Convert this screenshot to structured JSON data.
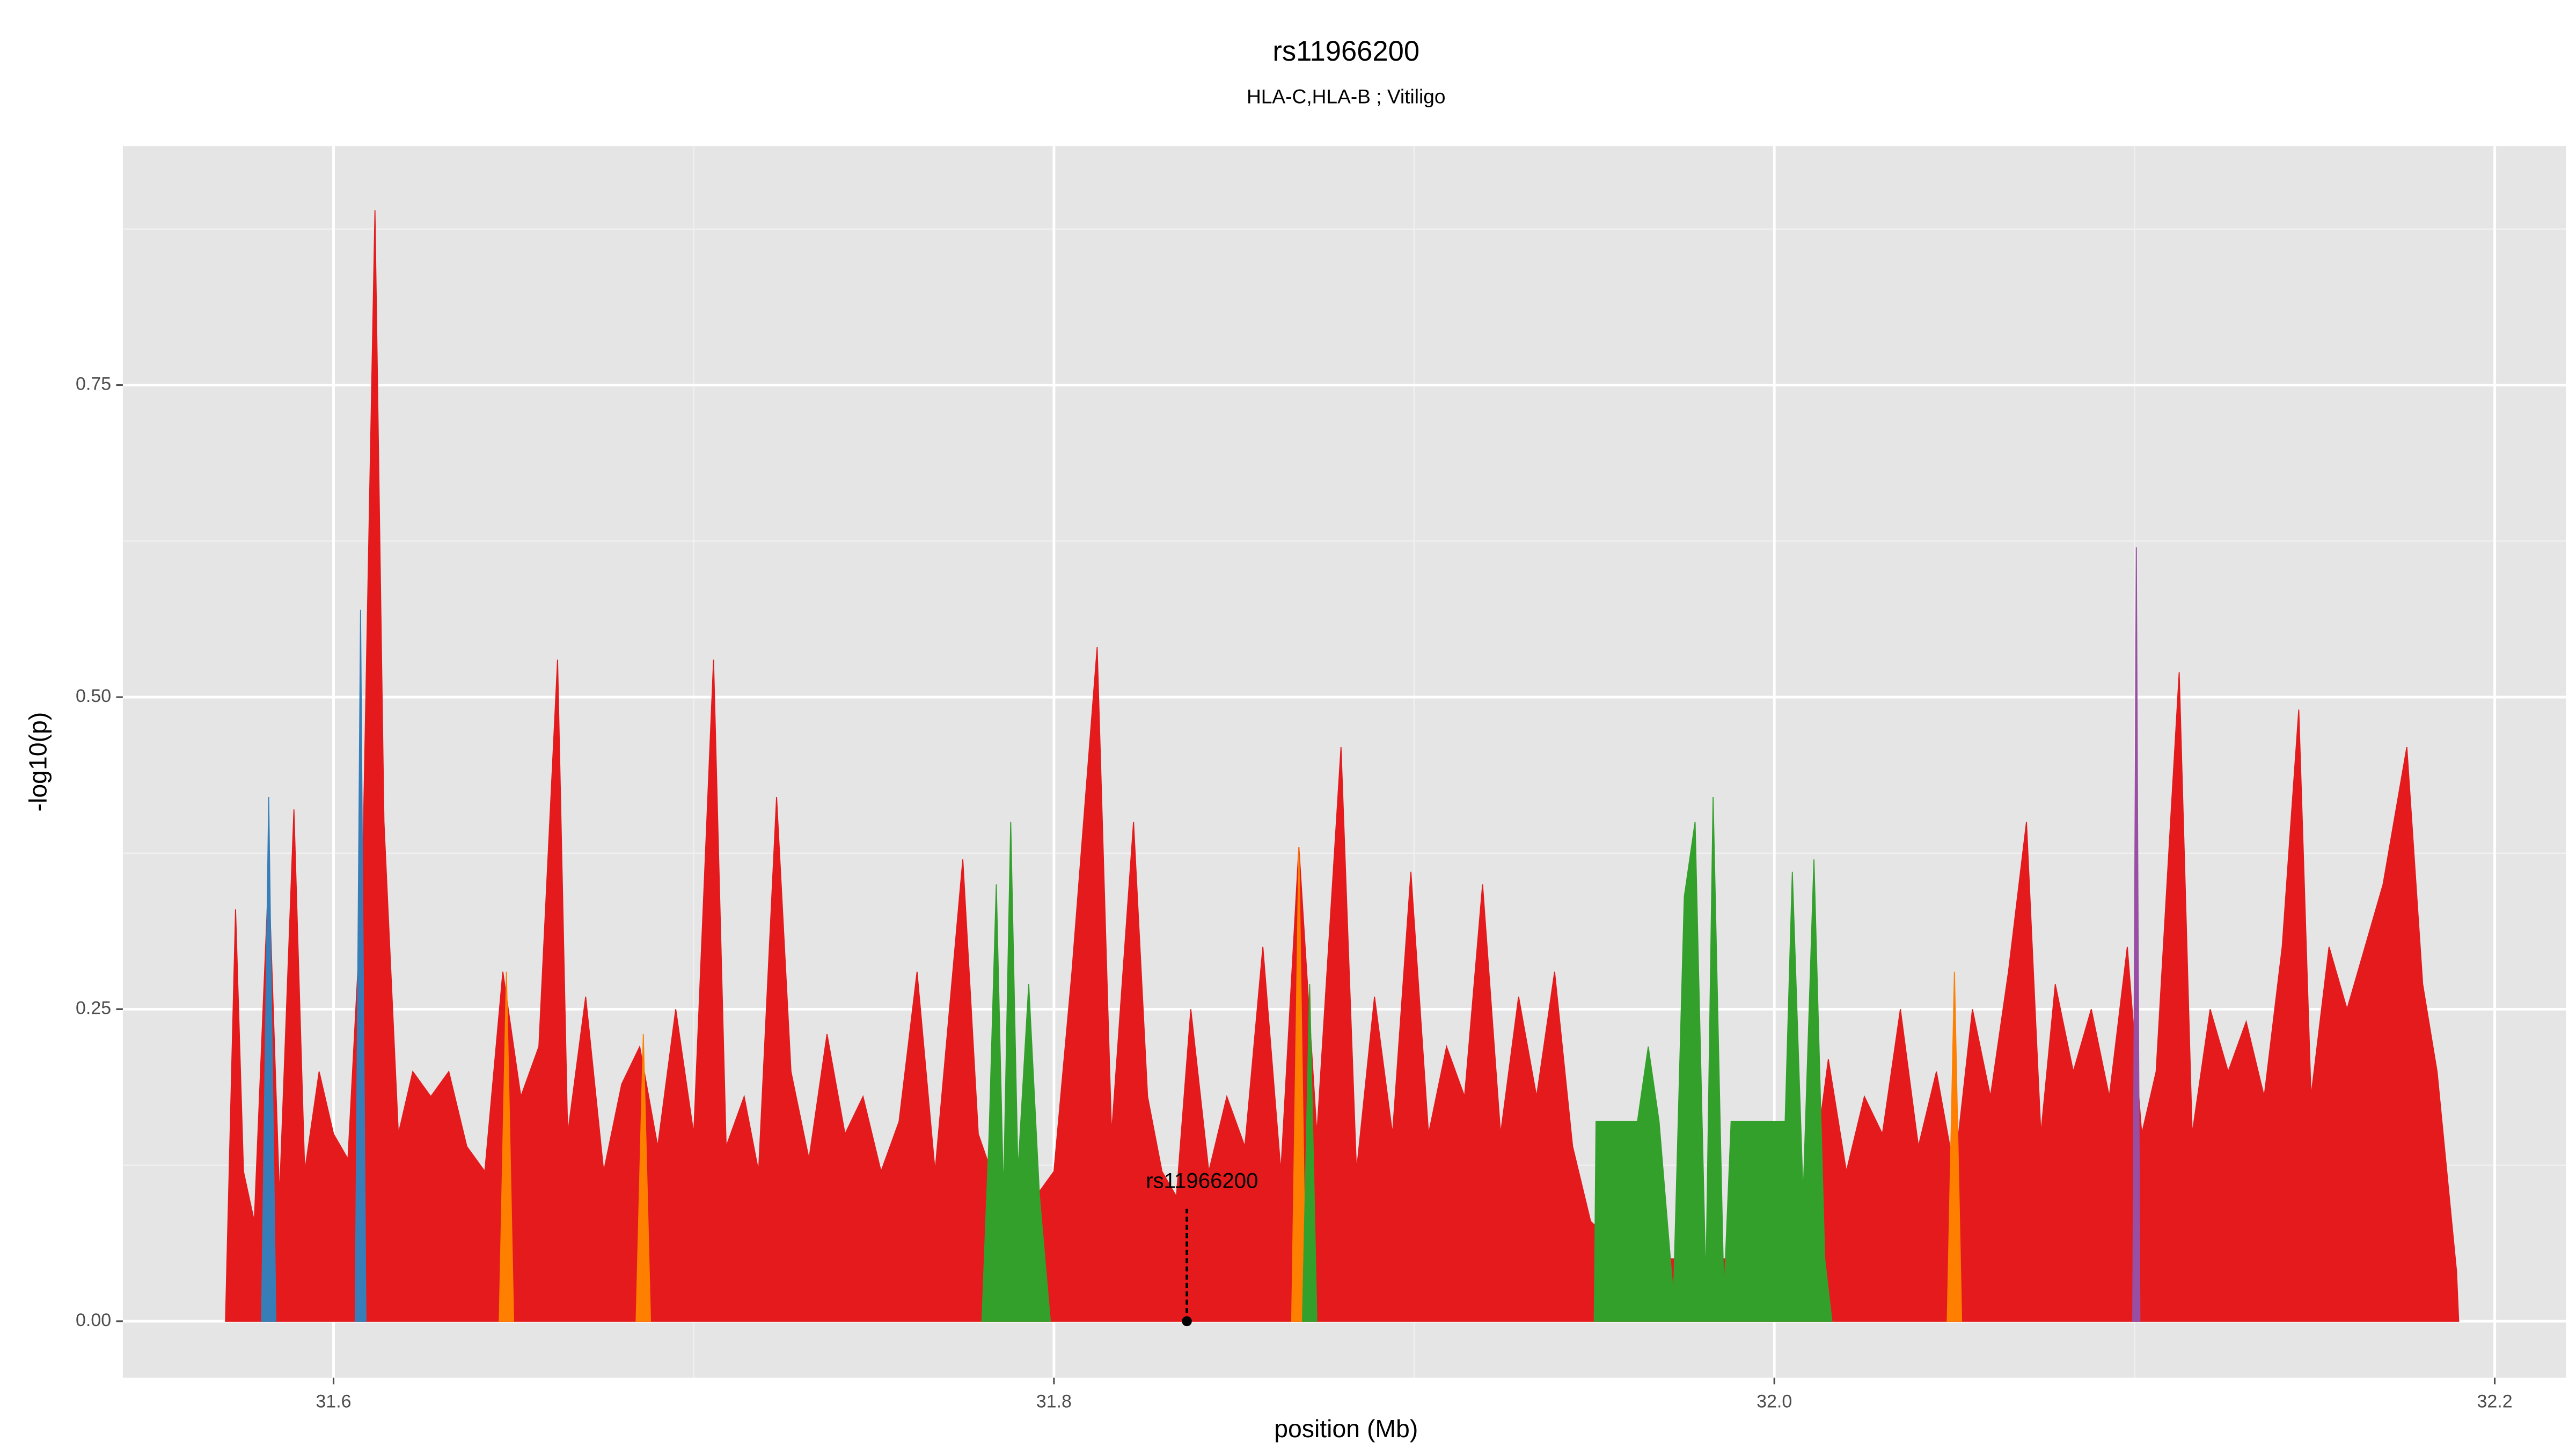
{
  "chart_data": {
    "type": "area",
    "title": "rs11966200",
    "subtitle": "HLA-C,HLA-B ; Vitiligo",
    "x_label": "position (Mb)",
    "y_label": "-log10(p)",
    "xlim": [
      31.5415,
      32.2198
    ],
    "ylim": [
      -0.0452,
      0.9415
    ],
    "xticks": [
      31.6,
      31.8,
      {
        "value": 32.0,
        "label": "32.0"
      },
      32.2
    ],
    "yticks": [
      {
        "value": 0,
        "label": "0.00"
      },
      0.25,
      {
        "value": 0.5,
        "label": "0.50"
      },
      0.75
    ],
    "xminor": [
      31.7,
      31.9,
      32.1
    ],
    "yminor": [
      0.125,
      0.375,
      0.625,
      0.875
    ],
    "grid": true,
    "series": [
      {
        "name": "red",
        "color": "#e41a1c",
        "x": [
          31.57,
          31.5728,
          31.575,
          31.578,
          31.582,
          31.585,
          31.589,
          31.592,
          31.596,
          31.6,
          31.604,
          31.608,
          31.6115,
          31.614,
          31.618,
          31.622,
          31.627,
          31.632,
          31.637,
          31.642,
          31.647,
          31.652,
          31.657,
          31.6622,
          31.665,
          31.67,
          31.675,
          31.68,
          31.685,
          31.69,
          31.695,
          31.7,
          31.7055,
          31.709,
          31.714,
          31.718,
          31.723,
          31.727,
          31.732,
          31.737,
          31.742,
          31.747,
          31.752,
          31.757,
          31.762,
          31.767,
          31.7747,
          31.779,
          31.785,
          31.79,
          31.795,
          31.8,
          31.805,
          31.812,
          31.816,
          31.8221,
          31.826,
          31.83,
          31.834,
          31.838,
          31.843,
          31.848,
          31.853,
          31.858,
          31.863,
          31.868,
          31.873,
          31.8797,
          31.884,
          31.889,
          31.894,
          31.8991,
          31.904,
          31.909,
          31.914,
          31.919,
          31.924,
          31.929,
          31.934,
          31.939,
          31.944,
          31.949,
          31.96,
          31.98,
          32.0,
          32.01,
          32.015,
          32.02,
          32.025,
          32.03,
          32.035,
          32.04,
          32.045,
          32.05,
          32.055,
          32.06,
          32.065,
          32.07,
          32.074,
          32.078,
          32.083,
          32.088,
          32.093,
          32.098,
          32.102,
          32.106,
          32.1124,
          32.116,
          32.121,
          32.126,
          32.131,
          32.136,
          32.141,
          32.1456,
          32.149,
          32.154,
          32.159,
          32.164,
          32.169,
          32.1756,
          32.18,
          32.184,
          32.1894,
          32.19
        ],
        "values": [
          0,
          0.33,
          0.12,
          0.08,
          0.36,
          0.1,
          0.41,
          0.12,
          0.2,
          0.15,
          0.13,
          0.35,
          0.89,
          0.4,
          0.15,
          0.2,
          0.18,
          0.2,
          0.14,
          0.12,
          0.28,
          0.18,
          0.22,
          0.53,
          0.15,
          0.26,
          0.12,
          0.19,
          0.22,
          0.14,
          0.25,
          0.15,
          0.53,
          0.14,
          0.18,
          0.12,
          0.42,
          0.2,
          0.13,
          0.23,
          0.15,
          0.18,
          0.12,
          0.16,
          0.28,
          0.12,
          0.37,
          0.15,
          0.1,
          0.08,
          0.1,
          0.12,
          0.28,
          0.54,
          0.15,
          0.4,
          0.18,
          0.12,
          0.1,
          0.25,
          0.12,
          0.18,
          0.14,
          0.3,
          0.12,
          0.38,
          0.15,
          0.46,
          0.12,
          0.26,
          0.15,
          0.36,
          0.15,
          0.22,
          0.18,
          0.35,
          0.15,
          0.26,
          0.18,
          0.28,
          0.14,
          0.08,
          0.05,
          0.05,
          0.05,
          0.1,
          0.21,
          0.12,
          0.18,
          0.15,
          0.25,
          0.14,
          0.2,
          0.12,
          0.25,
          0.18,
          0.28,
          0.4,
          0.15,
          0.27,
          0.2,
          0.25,
          0.18,
          0.3,
          0.15,
          0.2,
          0.52,
          0.15,
          0.25,
          0.2,
          0.24,
          0.18,
          0.3,
          0.49,
          0.18,
          0.3,
          0.25,
          0.3,
          0.35,
          0.46,
          0.27,
          0.2,
          0.04,
          0
        ]
      },
      {
        "name": "orange",
        "color": "#ff7f00",
        "x": [
          31.646,
          31.648,
          31.65,
          31.66,
          31.684,
          31.686,
          31.688,
          31.75,
          31.866,
          31.868,
          31.87,
          31.95,
          32.048,
          32.05,
          32.052
        ],
        "values": [
          0,
          0.28,
          0,
          null,
          0,
          0.23,
          0,
          null,
          0,
          0.38,
          0,
          null,
          0,
          0.28,
          0
        ]
      },
      {
        "name": "blue",
        "color": "#377eb8",
        "x": [
          31.58,
          31.582,
          31.584,
          31.59,
          31.606,
          31.6075,
          31.609
        ],
        "values": [
          0,
          0.42,
          0,
          null,
          0,
          0.57,
          0
        ]
      },
      {
        "name": "purple",
        "color": "#984ea3",
        "x": [
          32.0995,
          32.1005,
          32.1015
        ],
        "values": [
          0,
          0.62,
          0
        ]
      },
      {
        "name": "green",
        "color": "#33a02c",
        "x": [
          31.78,
          31.782,
          31.784,
          31.786,
          31.788,
          31.79,
          31.793,
          31.796,
          31.799,
          31.85,
          31.869,
          31.871,
          31.873,
          31.9,
          31.95,
          31.9505,
          31.962,
          31.965,
          31.968,
          31.972,
          31.975,
          31.978,
          31.981,
          31.983,
          31.986,
          31.988,
          32.003,
          32.005,
          32.008,
          32.011,
          32.014,
          32.016
        ],
        "values": [
          0,
          0.15,
          0.35,
          0.1,
          0.4,
          0.12,
          0.27,
          0.1,
          0,
          null,
          0,
          0.27,
          0,
          null,
          0,
          0.16,
          0.16,
          0.22,
          0.16,
          0.02,
          0.34,
          0.4,
          0.03,
          0.42,
          0.02,
          0.16,
          0.16,
          0.36,
          0.1,
          0.37,
          0.05,
          0
        ]
      }
    ],
    "highlight": {
      "label": "rs11966200",
      "x": 31.8369,
      "value": 0.09
    }
  }
}
